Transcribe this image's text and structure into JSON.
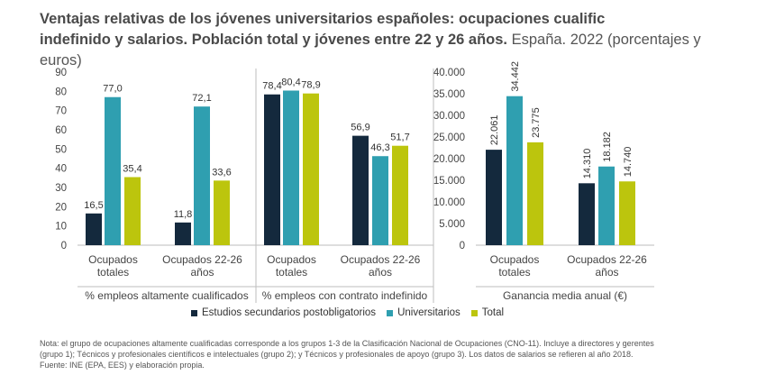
{
  "title": {
    "line1": "Ventajas relativas de los jóvenes universitarios españoles: ocupaciones cualific",
    "line2_bold": "indefinido y salarios. Población total y jóvenes entre 22 y 26 años.",
    "line2_light": " España. 2022 (porcentajes y euros)"
  },
  "colors": {
    "secundaria": "#14293d",
    "universitarios": "#2f9fb0",
    "total": "#bcc50d"
  },
  "legend": [
    {
      "label": "Estudios secundarios postobligatorios",
      "color": "#14293d"
    },
    {
      "label": "Universitarios",
      "color": "#2f9fb0"
    },
    {
      "label": "Total",
      "color": "#bcc50d"
    }
  ],
  "chart_data": [
    {
      "type": "bar",
      "xlabel": "% empleos altamente cualificados",
      "categories": [
        [
          "Ocupados",
          "totales"
        ],
        [
          "Ocupados 22-26",
          "años"
        ]
      ],
      "ylim": [
        0,
        90
      ],
      "yticks": [
        "0",
        "10",
        "20",
        "30",
        "40",
        "50",
        "60",
        "70",
        "80",
        "90"
      ],
      "series": [
        {
          "name": "Estudios secundarios postobligatorios",
          "values": [
            16.5,
            11.8
          ],
          "labels": [
            "16,5",
            "11,8"
          ]
        },
        {
          "name": "Universitarios",
          "values": [
            77.0,
            72.1
          ],
          "labels": [
            "77,0",
            "72,1"
          ]
        },
        {
          "name": "Total",
          "values": [
            35.4,
            33.6
          ],
          "labels": [
            "35,4",
            "33,6"
          ]
        }
      ]
    },
    {
      "type": "bar",
      "xlabel": "% empleos con contrato indefinido",
      "categories": [
        [
          "Ocupados",
          "totales"
        ],
        [
          "Ocupados 22-26",
          "años"
        ]
      ],
      "ylim": [
        0,
        90
      ],
      "series": [
        {
          "name": "Estudios secundarios postobligatorios",
          "values": [
            78.4,
            56.9
          ],
          "labels": [
            "78,4",
            "56,9"
          ]
        },
        {
          "name": "Universitarios",
          "values": [
            80.4,
            46.3
          ],
          "labels": [
            "80,4",
            "46,3"
          ]
        },
        {
          "name": "Total",
          "values": [
            78.9,
            51.7
          ],
          "labels": [
            "78,9",
            "51,7"
          ]
        }
      ]
    },
    {
      "type": "bar",
      "xlabel": "Ganancia media anual (€)",
      "categories": [
        [
          "Ocupados",
          "totales"
        ],
        [
          "Ocupados 22-26",
          "años"
        ]
      ],
      "ylim": [
        0,
        40000
      ],
      "yticks": [
        "0",
        "5.000",
        "10.000",
        "15.000",
        "20.000",
        "25.000",
        "30.000",
        "35.000",
        "40.000"
      ],
      "series": [
        {
          "name": "Estudios secundarios postobligatorios",
          "values": [
            22061,
            14310
          ],
          "labels": [
            "22.061",
            "14.310"
          ]
        },
        {
          "name": "Universitarios",
          "values": [
            34442,
            18182
          ],
          "labels": [
            "34.442",
            "18.182"
          ]
        },
        {
          "name": "Total",
          "values": [
            23775,
            14740
          ],
          "labels": [
            "23.775",
            "14.740"
          ]
        }
      ]
    }
  ],
  "note": [
    "Nota: el grupo de ocupaciones altamente cualificadas corresponde a los grupos 1-3 de la Clasificación Nacional de Ocupaciones (CNO-11). Incluye a directores y gerentes",
    "(grupo 1); Técnicos y profesionales científicos e intelectuales (grupo 2); y Técnicos y profesionales de apoyo (grupo 3). Los datos de salarios se refieren al año 2018.",
    "Fuente: INE (EPA, EES) y elaboración propia."
  ]
}
